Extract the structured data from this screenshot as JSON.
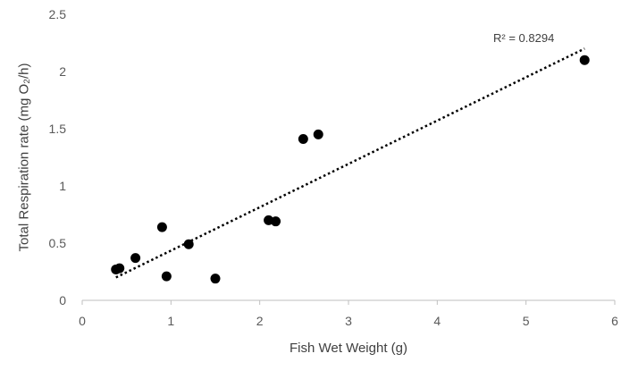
{
  "chart_data": {
    "type": "scatter",
    "title": "",
    "xlabel": "Fish Wet Weight (g)",
    "ylabel": "Total Respiration rate (mg O₂/h)",
    "xlim": [
      0,
      6
    ],
    "ylim": [
      0,
      2.5
    ],
    "xticks": [
      "0",
      "1",
      "2",
      "3",
      "4",
      "5",
      "6"
    ],
    "yticks": [
      "0",
      "0.5",
      "1",
      "1.5",
      "2",
      "2.5"
    ],
    "grid": false,
    "legend": "none",
    "series": [
      {
        "color": "#000000",
        "points": [
          {
            "x": 0.38,
            "y": 0.27
          },
          {
            "x": 0.42,
            "y": 0.28
          },
          {
            "x": 0.6,
            "y": 0.37
          },
          {
            "x": 0.9,
            "y": 0.64
          },
          {
            "x": 0.95,
            "y": 0.21
          },
          {
            "x": 1.2,
            "y": 0.49
          },
          {
            "x": 1.5,
            "y": 0.19
          },
          {
            "x": 2.1,
            "y": 0.7
          },
          {
            "x": 2.18,
            "y": 0.69
          },
          {
            "x": 2.49,
            "y": 1.41
          },
          {
            "x": 2.66,
            "y": 1.45
          },
          {
            "x": 5.66,
            "y": 2.1
          }
        ]
      }
    ],
    "trendline": {
      "type": "linear",
      "style": "dotted",
      "color": "#000000",
      "from": {
        "x": 0.38,
        "y": 0.2
      },
      "to": {
        "x": 5.66,
        "y": 2.2
      }
    },
    "annotation": "R² = 0.8294"
  }
}
